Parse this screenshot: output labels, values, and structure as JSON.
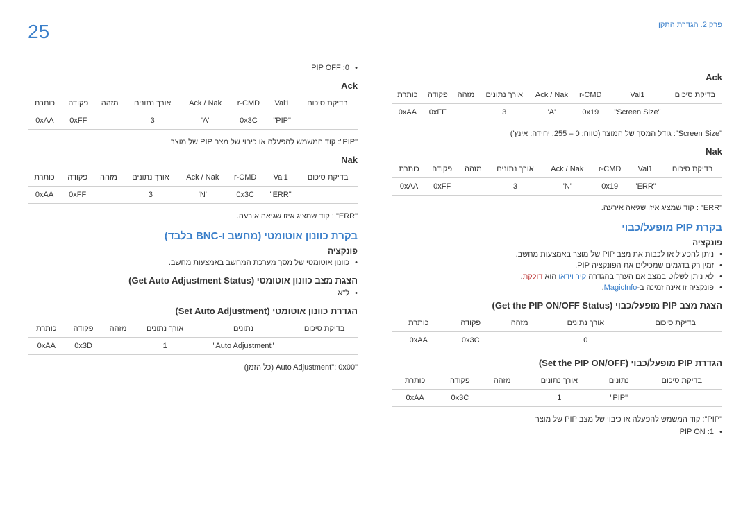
{
  "page_number": "25",
  "chapter": "פרק 2. הגדרת התקן",
  "right_col": {
    "ack": "Ack",
    "nak": "Nak",
    "headers6": [
      "כותרת",
      "פקודה",
      "מזהה",
      "אורך נתונים",
      "Ack / Nak",
      "r-CMD",
      "Val1",
      "בדיקת סיכום"
    ],
    "ack_row": [
      "0xAA",
      "0xFF",
      "",
      "3",
      "'A'",
      "0x19",
      "\"Screen Size\"",
      ""
    ],
    "nak_row": [
      "0xAA",
      "0xFF",
      "",
      "3",
      "'N'",
      "0x19",
      "\"ERR\"",
      ""
    ],
    "screen_size_note": "\"Screen Size\": גודל המסך של המוצר (טווח: 0 – 255, יחידה: אינץ')",
    "err_note": "\"ERR\" : קוד שמציג איזו שגיאה אירעה.",
    "pip_title": "בקרת PIP מופעל/כבוי",
    "func_label": "פונקציה",
    "func_items": [
      {
        "text": "ניתן להפעיל או לכבות את מצב PIP של מוצר באמצעות מחשב."
      },
      {
        "text": "זמין רק בדגמים שמכילים את הפונקציה PIP."
      },
      {
        "text": "לא ניתן לשלוט במצב אם הערך בהגדרה קיר וידאו הוא דולקת.",
        "blue": "קיר וידאו",
        "red": "דולקת"
      },
      {
        "text": "פונקציה זו אינה זמינה ב-MagicInfo.",
        "blue": "MagicInfo"
      }
    ],
    "get_status": "הצגת מצב PIP מופעל/כבוי (Get the PIP ON/OFF Status)",
    "headers5": [
      "כותרת",
      "פקודה",
      "מזהה",
      "אורך נתונים",
      "בדיקת סיכום"
    ],
    "get_row": [
      "0xAA",
      "0x3C",
      "",
      "0",
      ""
    ],
    "set_status": "הגדרת PIP מופעל/כבוי (Set the PIP ON/OFF)",
    "headers5b": [
      "כותרת",
      "פקודה",
      "מזהה",
      "אורך נתונים",
      "נתונים",
      "בדיקת סיכום"
    ],
    "set_row": [
      "0xAA",
      "0x3C",
      "",
      "1",
      "\"PIP\"",
      ""
    ],
    "pip_note": "\"PIP\": קוד המשמש להפעלה או כיבוי של מצב PIP של מוצר",
    "pip_on": "1: PIP ON"
  },
  "left_col": {
    "pip_off": "0: PIP OFF",
    "ack": "Ack",
    "nak": "Nak",
    "headers6": [
      "כותרת",
      "פקודה",
      "מזהה",
      "אורך נתונים",
      "Ack / Nak",
      "r-CMD",
      "Val1",
      "בדיקת סיכום"
    ],
    "ack_row": [
      "0xAA",
      "0xFF",
      "",
      "3",
      "'A'",
      "0x3C",
      "\"PIP\"",
      ""
    ],
    "nak_row": [
      "0xAA",
      "0xFF",
      "",
      "3",
      "'N'",
      "0x3C",
      "\"ERR\"",
      ""
    ],
    "pip_note": "\"PIP\": קוד המשמש להפעלה או כיבוי של מצב PIP של מוצר",
    "err_note": "\"ERR\" : קוד שמציג איזו שגיאה אירעה.",
    "auto_title": "בקרת כוונון אוטומטי (מחשב ו-BNC בלבד)",
    "func_label": "פונקציה",
    "auto_func": "כוונון אוטומטי של מסך מערכת המחשב באמצעות מחשב.",
    "get_auto": "הצגת מצב כוונון אוטומטי (Get Auto Adjustment Status)",
    "na": "ל\"א",
    "set_auto": "הגדרת כוונון אוטומטי (Set Auto Adjustment)",
    "headers5b": [
      "כותרת",
      "פקודה",
      "מזהה",
      "אורך נתונים",
      "נתונים",
      "בדיקת סיכום"
    ],
    "set_row": [
      "0xAA",
      "0x3D",
      "",
      "1",
      "\"Auto Adjustment\"",
      ""
    ],
    "auto_adj_note": "\"Auto Adjustment\": 0x00 (כל הזמן)"
  }
}
